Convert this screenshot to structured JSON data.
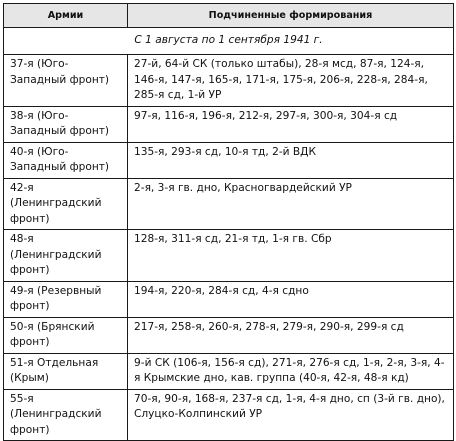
{
  "table": {
    "headers": {
      "army": "Армии",
      "units": "Подчиненные формирования"
    },
    "period": "С 1 августа по 1 сентября 1941 г.",
    "rows": [
      {
        "army": "37-я (Юго-Западный фронт)",
        "units": "27-й, 64-й СК (только штабы), 28-я мсд, 87-я, 124-я, 146-я, 147-я, 165-я, 171-я, 175-я, 206-я, 228-я, 284-я, 285-я сд, 1-й УР"
      },
      {
        "army": "38-я (Юго-Западный фронт)",
        "units": "97-я, 116-я, 196-я, 212-я, 297-я, 300-я, 304-я сд"
      },
      {
        "army": "40-я (Юго-Западный фронт)",
        "units": "135-я, 293-я сд, 10-я тд, 2-й ВДК"
      },
      {
        "army": "42-я (Ленинградский фронт)",
        "units": "2-я, 3-я гв. дно, Красногвардейский УР"
      },
      {
        "army": "48-я (Ленинградский фронт)",
        "units": "128-я, 311-я сд, 21-я тд, 1-я гв. Сбр"
      },
      {
        "army": "49-я (Резервный фронт)",
        "units": "194-я, 220-я, 284-я сд, 4-я сдно"
      },
      {
        "army": "50-я (Брянский фронт)",
        "units": "217-я, 258-я, 260-я, 278-я, 279-я, 290-я, 299-я сд"
      },
      {
        "army": "51-я Отдельная (Крым)",
        "units": "9-й СК (106-я, 156-я сд), 271-я, 276-я сд, 1-я, 2-я, 3-я, 4-я Крымские дно, кав. группа (40-я, 42-я, 48-я кд)"
      },
      {
        "army": "55-я (Ленинградский фронт)",
        "units": "70-я, 90-я, 168-я, 237-я сд, 1-я, 4-я дно, сп (3-й гв. дно), Слуцко-Колпинский УР"
      }
    ]
  }
}
